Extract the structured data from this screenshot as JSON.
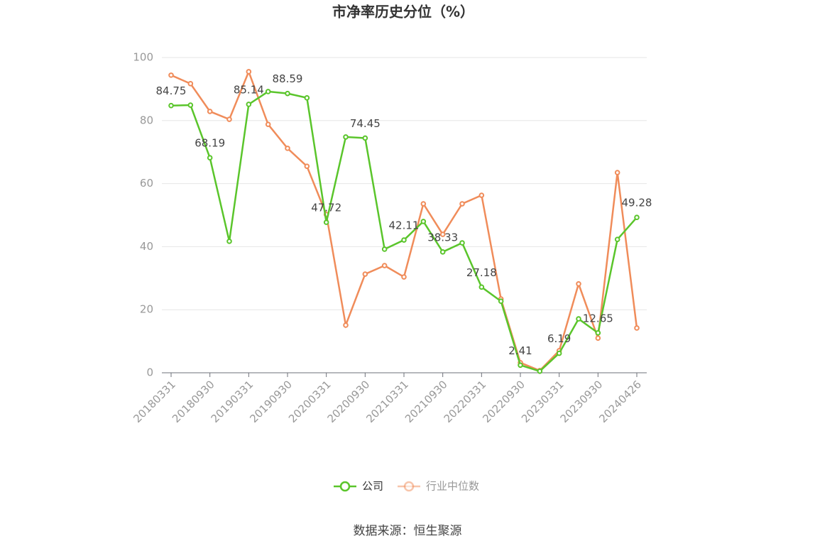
{
  "chart_data": {
    "type": "line",
    "title": "市净率历史分位（%）",
    "categories": [
      "20180331",
      null,
      "20180930",
      null,
      "20190331",
      null,
      "20190930",
      null,
      "20200331",
      null,
      "20200930",
      null,
      "20210331",
      null,
      "20210930",
      null,
      "20220331",
      null,
      "20220930",
      null,
      "20230331",
      null,
      "20230930",
      null,
      "20240426"
    ],
    "series": [
      {
        "name": "公司",
        "color": "#5ac52b",
        "values": [
          84.75,
          84.9,
          68.19,
          41.7,
          85.14,
          89.2,
          88.59,
          87.2,
          47.72,
          74.8,
          74.45,
          39.2,
          42.11,
          48.0,
          38.33,
          41.2,
          27.18,
          22.7,
          2.41,
          0.5,
          6.19,
          17.1,
          12.65,
          42.3,
          49.28
        ]
      },
      {
        "name": "行业中位数",
        "color": "#f08c5a",
        "values": [
          94.4,
          91.7,
          82.9,
          80.4,
          95.5,
          78.8,
          71.2,
          65.5,
          50.2,
          15.1,
          31.3,
          34.0,
          30.4,
          53.6,
          43.9,
          53.6,
          56.3,
          23.4,
          3.2,
          0.7,
          7.0,
          28.2,
          11.0,
          63.5,
          14.2
        ]
      }
    ],
    "ylim": [
      0,
      100
    ],
    "yticks": [
      0,
      20,
      40,
      60,
      80,
      100
    ],
    "grid": true,
    "source": "数据来源：恒生聚源"
  }
}
